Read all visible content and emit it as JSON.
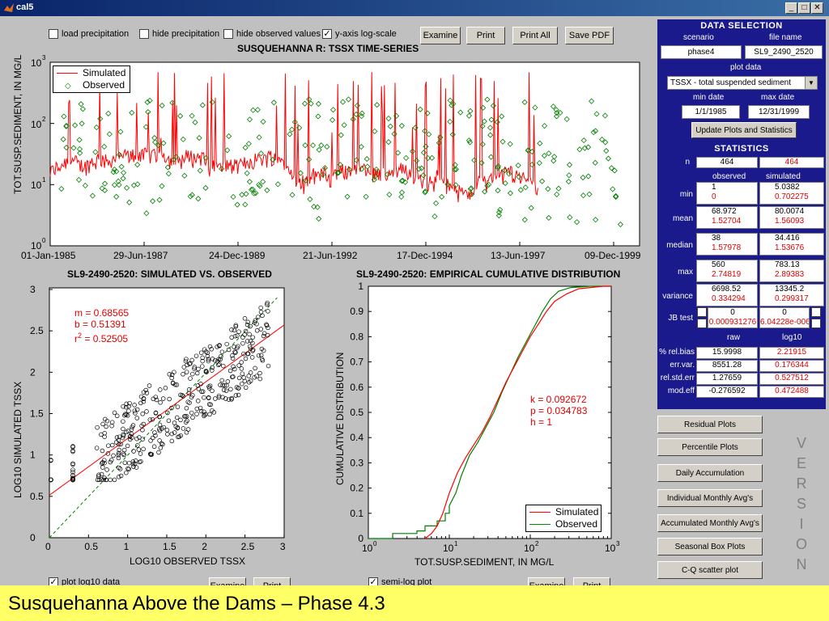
{
  "window": {
    "title": "cal5"
  },
  "toolbar": {
    "load_precip": "load precipitation",
    "hide_precip": "hide precipitation",
    "hide_obs": "hide observed values",
    "ylog": "y-axis log-scale",
    "examine": "Examine",
    "print": "Print",
    "print_all": "Print All",
    "save_pdf": "Save PDF"
  },
  "timeseries": {
    "title": "SUSQUEHANNA R: TSSX TIME-SERIES",
    "ylabel": "TOT.SUSP.SEDIMENT, IN MG/L",
    "yticks": [
      "10",
      "10",
      "10",
      "10"
    ],
    "yexps": [
      "0",
      "1",
      "2",
      "3"
    ],
    "xticks": [
      "01-Jan-1985",
      "29-Jun-1987",
      "24-Dec-1989",
      "21-Jun-1992",
      "17-Dec-1994",
      "13-Jun-1997",
      "09-Dec-1999"
    ],
    "legend": [
      "Simulated",
      "Observed"
    ]
  },
  "scatter": {
    "title": "SL9-2490-2520: SIMULATED VS. OBSERVED",
    "xlabel": "LOG10 OBSERVED TSSX",
    "ylabel": "LOG10 SIMULATED TSSX",
    "m": "m = 0.68565",
    "b": "b = 0.51391",
    "r2_prefix": "r",
    "r2_sup": "2",
    "r2_value": " = 0.52505",
    "xticks": [
      "0",
      "0.5",
      "1",
      "1.5",
      "2",
      "2.5",
      "3"
    ],
    "yticks": [
      "0",
      "0.5",
      "1",
      "1.5",
      "2",
      "2.5",
      "3"
    ],
    "checkbox": "plot log10 data",
    "examine": "Examine",
    "print": "Print"
  },
  "cdf": {
    "title": "SL9-2490-2520: EMPIRICAL CUMULATIVE DISTRIBUTION",
    "xlabel": "TOT.SUSP.SEDIMENT, IN MG/L",
    "ylabel": "CUMULATIVE DISTRIBUTION",
    "k": "k = 0.092672",
    "p": "p = 0.034783",
    "h": "h = 1",
    "legend": [
      "Simulated",
      "Observed"
    ],
    "yticks": [
      "0",
      "0.1",
      "0.2",
      "0.3",
      "0.4",
      "0.5",
      "0.6",
      "0.7",
      "0.8",
      "0.9",
      "1"
    ],
    "xticks": [
      "10",
      "10",
      "10",
      "10"
    ],
    "xexps": [
      "0",
      "1",
      "2",
      "3"
    ],
    "checkbox": "semi-log plot",
    "examine": "Examine",
    "print": "Print"
  },
  "panel": {
    "data_selection": "DATA SELECTION",
    "scenario_label": "scenario",
    "filename_label": "file name",
    "scenario": "phase4",
    "filename": "SL9_2490_2520",
    "plotdata_label": "plot data",
    "plotdata": "TSSX  -  total suspended sediment",
    "min_date_label": "min date",
    "max_date_label": "max date",
    "min_date": "1/1/1985",
    "max_date": "12/31/1999",
    "update_button": "Update Plots and Statistics",
    "statistics": "STATISTICS",
    "n_label": "n",
    "n_obs": "464",
    "n_sim": "464",
    "col_observed": "observed",
    "col_simulated": "simulated",
    "rows": [
      {
        "label": "min",
        "obs": "1",
        "obs2": "0",
        "sim": "5.0382",
        "sim2": "0.702275"
      },
      {
        "label": "mean",
        "obs": "68.972",
        "obs2": "1.52704",
        "sim": "80.0074",
        "sim2": "1.56093"
      },
      {
        "label": "median",
        "obs": "38",
        "obs2": "1.57978",
        "sim": "34.416",
        "sim2": "1.53676"
      },
      {
        "label": "max",
        "obs": "560",
        "obs2": "2.74819",
        "sim": "783.13",
        "sim2": "2.89383"
      },
      {
        "label": "variance",
        "obs": "6698.52",
        "obs2": "0.334294",
        "sim": "13345.2",
        "sim2": "0.299317"
      }
    ],
    "jb_label": "JB test",
    "jb_obs": "0",
    "jb_obs2": "0.000931276",
    "jb_sim": "0",
    "jb_sim2": "6.04228e-006",
    "col_raw": "raw",
    "col_log10": "log10",
    "rows2": [
      {
        "label": "% rel.bias",
        "raw": "15.9998",
        "log": "2.21915"
      },
      {
        "label": "err.var.",
        "raw": "8551.28",
        "log": "0.176344"
      },
      {
        "label": "rel.std.err",
        "raw": "1.27659",
        "log": "0.527512"
      },
      {
        "label": "mod.eff",
        "raw": "-0.276592",
        "log": "0.472488"
      }
    ]
  },
  "plot_buttons": [
    "Residual Plots",
    "Percentile Plots",
    "Daily Accumulation",
    "Individual Monthly Avg's",
    "Accumulated Monthly Avg's",
    "Seasonal Box Plots",
    "C-Q scatter plot"
  ],
  "version_letters": [
    "V",
    "E",
    "R",
    "S",
    "I",
    "O",
    "N"
  ],
  "footer": "Susquehanna Above the Dams – Phase 4.3",
  "colors": {
    "simulated": "#ff0000",
    "observed": "#008000",
    "panel": "#1a1a8c",
    "footer": "#ffff66"
  }
}
